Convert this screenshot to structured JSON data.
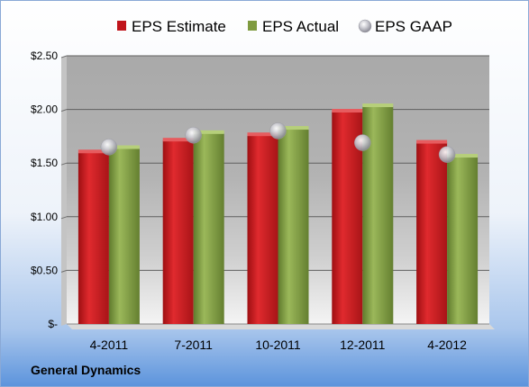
{
  "company": "General Dynamics",
  "colors": {
    "estimate": "#c0151b",
    "actual": "#7f9b3f",
    "gaap": "#b0b0b8"
  },
  "chart_data": {
    "type": "bar",
    "title": "",
    "xlabel": "",
    "ylabel": "",
    "categories": [
      "4-2011",
      "7-2011",
      "10-2011",
      "12-2011",
      "4-2012"
    ],
    "ylim": [
      0,
      2.5
    ],
    "yticks": [
      0,
      0.5,
      1.0,
      1.5,
      2.0,
      2.5
    ],
    "ytick_labels": [
      "$-",
      "$0.50",
      "$1.00",
      "$1.50",
      "$2.00",
      "$2.50"
    ],
    "grid": true,
    "legend": "top",
    "series": [
      {
        "name": "EPS Estimate",
        "type": "bar",
        "values": [
          1.6,
          1.71,
          1.76,
          1.98,
          1.69
        ]
      },
      {
        "name": "EPS Actual",
        "type": "bar",
        "values": [
          1.64,
          1.78,
          1.82,
          2.03,
          1.56
        ]
      },
      {
        "name": "EPS GAAP",
        "type": "scatter",
        "values": [
          1.65,
          1.76,
          1.8,
          1.69,
          1.58
        ]
      }
    ]
  }
}
